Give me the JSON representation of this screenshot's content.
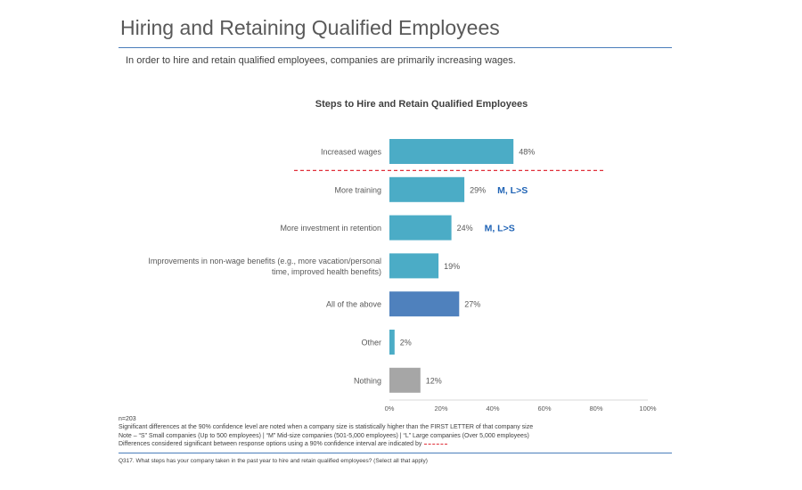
{
  "header": {
    "title": "Hiring and Retaining Qualified Employees",
    "subtitle": "In order to hire and retain qualified employees, companies are primarily increasing wages."
  },
  "chart_data": {
    "type": "bar",
    "orientation": "horizontal",
    "title": "Steps to Hire and Retain Qualified Employees",
    "categories": [
      "Increased wages",
      "More training",
      "More investment in retention",
      "Improvements in non-wage benefits (e.g., more vacation/personal time, improved health benefits)",
      "All of the above",
      "Other",
      "Nothing"
    ],
    "category_lines": [
      [
        "Increased wages"
      ],
      [
        "More training"
      ],
      [
        "More investment in retention"
      ],
      [
        "Improvements in non-wage benefits (e.g., more vacation/personal",
        "time, improved health benefits)"
      ],
      [
        "All of the above"
      ],
      [
        "Other"
      ],
      [
        "Nothing"
      ]
    ],
    "values": [
      48,
      29,
      24,
      19,
      27,
      2,
      12
    ],
    "value_labels": [
      "48%",
      "29%",
      "24%",
      "19%",
      "27%",
      "2%",
      "12%"
    ],
    "bar_colors": [
      "#4bacc6",
      "#4bacc6",
      "#4bacc6",
      "#4bacc6",
      "#4f81bd",
      "#4bacc6",
      "#a6a6a6"
    ],
    "significance": [
      "",
      "M, L>S",
      "M, L>S",
      "",
      "",
      "",
      ""
    ],
    "significance_color": "#1f63b5",
    "xlim": [
      0,
      100
    ],
    "xticks": [
      0,
      20,
      40,
      60,
      80,
      100
    ],
    "xtick_labels": [
      "0%",
      "20%",
      "40%",
      "60%",
      "80%",
      "100%"
    ],
    "grid": false,
    "legend": "none",
    "confidence_line_color": "#e0303a"
  },
  "footnotes": {
    "n": "n=203",
    "line1": "Significant differences at the 90% confidence level are noted when a company size is statistically higher than the FIRST LETTER of that company size",
    "line2": "Note – “S” Small companies (Up to 500 employees) | “M” Mid-size companies (501-5,000 employees) | “L” Large companies (Over 5,000 employees)",
    "line3": "Differences considered significant between response options using a 90% confidence interval are indicated by"
  },
  "question": "Q317. What steps has your company taken in the past year to hire and retain qualified employees? (Select all that apply)"
}
